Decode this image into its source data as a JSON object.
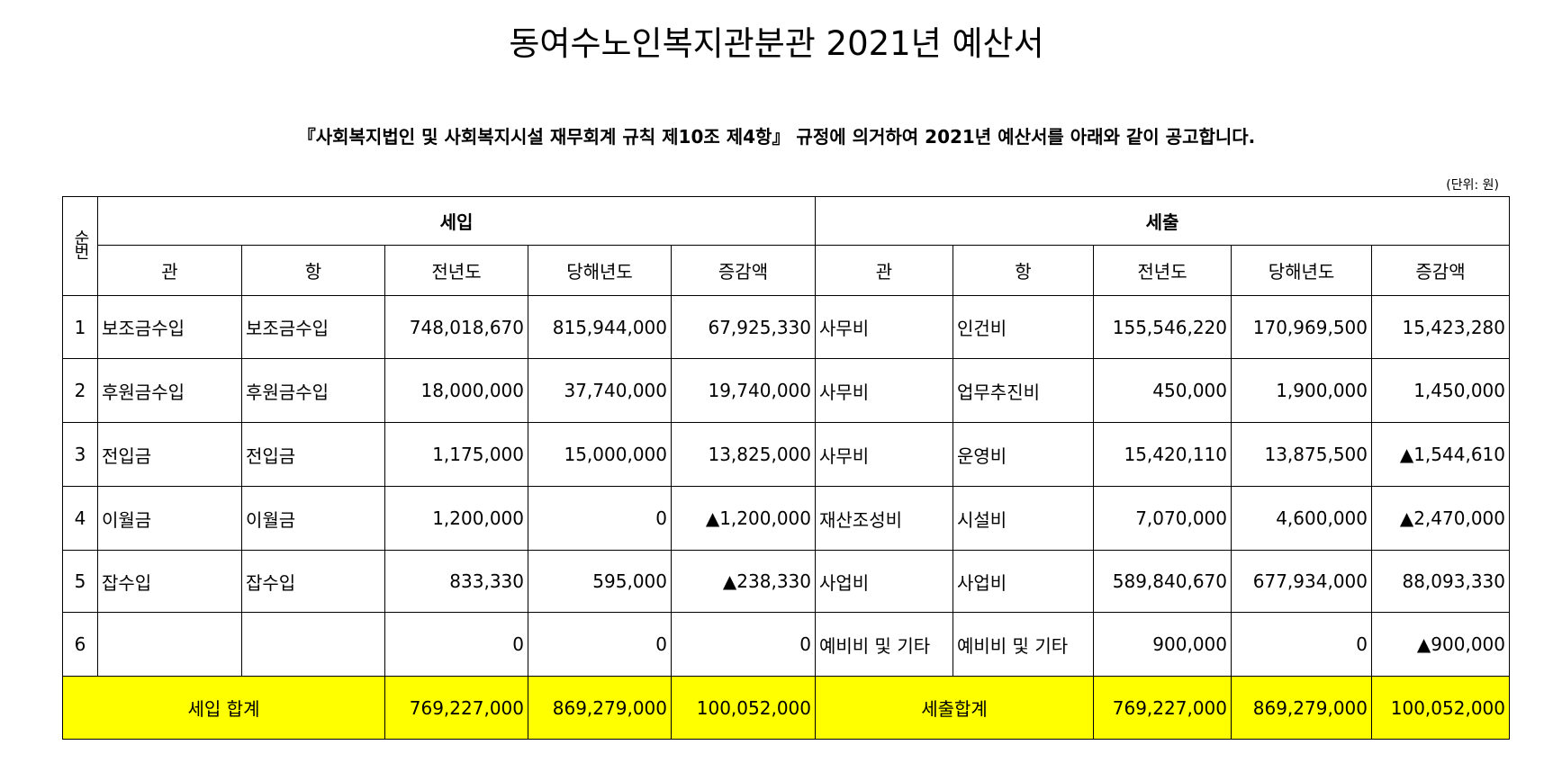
{
  "title": "동여수노인복지관분관 2021년 예산서",
  "subtitle": "『사회복지법인 및 사회복지시설 재무회계 규칙 제10조 제4항』 규정에 의거하여 2021년 예산서를 아래와 같이 공고합니다.",
  "unit": "(단위: 원)",
  "header": {
    "seq": "순번",
    "income": "세입",
    "expense": "세출",
    "cols": [
      "관",
      "항",
      "전년도",
      "당해년도",
      "증감액",
      "관",
      "항",
      "전년도",
      "당해년도",
      "증감액"
    ]
  },
  "rows": [
    [
      "1",
      "보조금수입",
      "보조금수입",
      "748,018,670",
      "815,944,000",
      "67,925,330",
      "사무비",
      "인건비",
      "155,546,220",
      "170,969,500",
      "15,423,280"
    ],
    [
      "2",
      "후원금수입",
      "후원금수입",
      "18,000,000",
      "37,740,000",
      "19,740,000",
      "사무비",
      "업무추진비",
      "450,000",
      "1,900,000",
      "1,450,000"
    ],
    [
      "3",
      "전입금",
      "전입금",
      "1,175,000",
      "15,000,000",
      "13,825,000",
      "사무비",
      "운영비",
      "15,420,110",
      "13,875,500",
      "▲1,544,610"
    ],
    [
      "4",
      "이월금",
      "이월금",
      "1,200,000",
      "0",
      "▲1,200,000",
      "재산조성비",
      "시설비",
      "7,070,000",
      "4,600,000",
      "▲2,470,000"
    ],
    [
      "5",
      "잡수입",
      "잡수입",
      "833,330",
      "595,000",
      "▲238,330",
      "사업비",
      "사업비",
      "589,840,670",
      "677,934,000",
      "88,093,330"
    ],
    [
      "6",
      "",
      "",
      "0",
      "0",
      "0",
      "예비비 및 기타",
      "예비비 및 기타",
      "900,000",
      "0",
      "▲900,000"
    ]
  ],
  "totals": {
    "income_label": "세입 합계",
    "income": [
      "769,227,000",
      "869,279,000",
      "100,052,000"
    ],
    "expense_label": "세출합계",
    "expense": [
      "769,227,000",
      "869,279,000",
      "100,052,000"
    ]
  },
  "colors": {
    "total_bg": "#ffff00"
  }
}
